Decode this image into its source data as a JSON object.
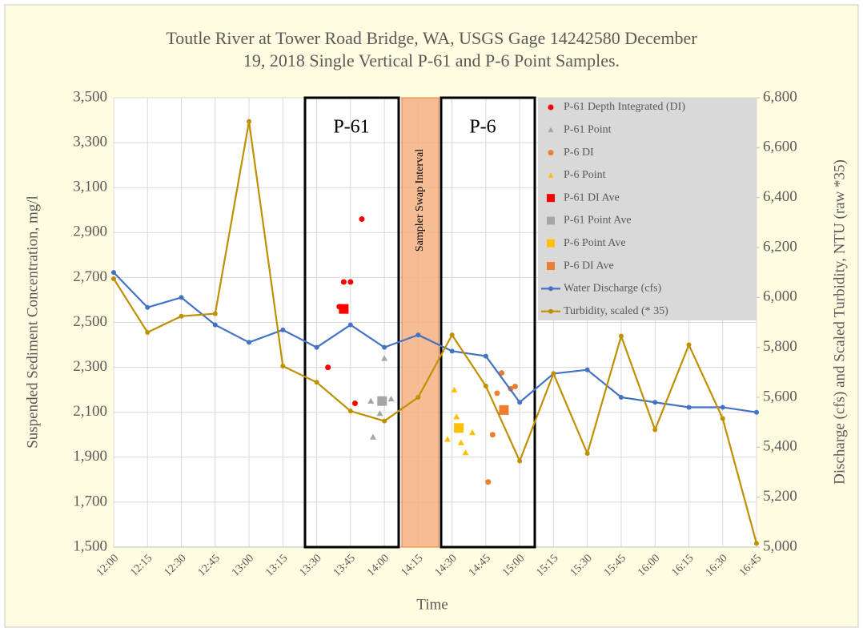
{
  "chart_data": {
    "type": "line",
    "title": [
      "Toutle River at Tower Road Bridge, WA, USGS Gage 14242580 December",
      "19, 2018 Single Vertical P-61 and P-6 Point Samples."
    ],
    "xlabel": "Time",
    "ylabel": "Suspended Sediment Concentration, mg/l",
    "y2label": "Discharge (cfs) and Scaled Turbidity, NTU (raw *35)",
    "annotations": [
      "P-61",
      "P-6",
      "Sampler Swap Interval"
    ],
    "xlim": [
      720,
      1005
    ],
    "xticks": [
      {
        "value": 720,
        "label": "12:00"
      },
      {
        "value": 735,
        "label": "12:15"
      },
      {
        "value": 750,
        "label": "12:30"
      },
      {
        "value": 765,
        "label": "12:45"
      },
      {
        "value": 780,
        "label": "13:00"
      },
      {
        "value": 795,
        "label": "13:15"
      },
      {
        "value": 810,
        "label": "13:30"
      },
      {
        "value": 825,
        "label": "13:45"
      },
      {
        "value": 840,
        "label": "14:00"
      },
      {
        "value": 855,
        "label": "14:15"
      },
      {
        "value": 870,
        "label": "14:30"
      },
      {
        "value": 885,
        "label": "14:45"
      },
      {
        "value": 900,
        "label": "15:00"
      },
      {
        "value": 915,
        "label": "15:15"
      },
      {
        "value": 930,
        "label": "15:30"
      },
      {
        "value": 945,
        "label": "15:45"
      },
      {
        "value": 960,
        "label": "16:00"
      },
      {
        "value": 975,
        "label": "16:15"
      },
      {
        "value": 990,
        "label": "16:30"
      },
      {
        "value": 1005,
        "label": "16:45"
      }
    ],
    "ylim": [
      1500,
      3500
    ],
    "yticks": [
      {
        "value": 1500,
        "label": "1,500"
      },
      {
        "value": 1700,
        "label": "1,700"
      },
      {
        "value": 1900,
        "label": "1,900"
      },
      {
        "value": 2100,
        "label": "2,100"
      },
      {
        "value": 2300,
        "label": "2,300"
      },
      {
        "value": 2500,
        "label": "2,500"
      },
      {
        "value": 2700,
        "label": "2,700"
      },
      {
        "value": 2900,
        "label": "2,900"
      },
      {
        "value": 3100,
        "label": "3,100"
      },
      {
        "value": 3300,
        "label": "3,300"
      },
      {
        "value": 3500,
        "label": "3,500"
      }
    ],
    "y2lim": [
      5000,
      6800
    ],
    "y2ticks": [
      {
        "value": 5000,
        "label": "5,000"
      },
      {
        "value": 5200,
        "label": "5,200"
      },
      {
        "value": 5400,
        "label": "5,400"
      },
      {
        "value": 5600,
        "label": "5,600"
      },
      {
        "value": 5800,
        "label": "5,800"
      },
      {
        "value": 6000,
        "label": "6,000"
      },
      {
        "value": 6200,
        "label": "6,200"
      },
      {
        "value": 6400,
        "label": "6,400"
      },
      {
        "value": 6600,
        "label": "6,600"
      },
      {
        "value": 6800,
        "label": "6,800"
      }
    ],
    "grid": true,
    "legend": "upper right",
    "series": [
      {
        "name": "P-61 Depth Integrated (DI)",
        "kind": "scatter",
        "marker": "circle",
        "color": "#ff0000",
        "x": [
          815,
          820,
          822,
          825,
          827,
          830
        ],
        "values": [
          2300,
          2570,
          2680,
          2680,
          2140,
          2960
        ]
      },
      {
        "name": "P-61 Point",
        "kind": "scatter",
        "marker": "triangle",
        "color": "#a6a6a6",
        "x": [
          834,
          835,
          838,
          840,
          843
        ],
        "values": [
          2150,
          1990,
          2095,
          2340,
          2160
        ]
      },
      {
        "name": "P-6 DI",
        "kind": "scatter",
        "marker": "circle",
        "color": "#ed7d31",
        "x": [
          886,
          888,
          890,
          892,
          896,
          898
        ],
        "values": [
          1790,
          2000,
          2185,
          2275,
          2205,
          2215
        ]
      },
      {
        "name": "P-6 Point",
        "kind": "scatter",
        "marker": "triangle",
        "color": "#ffc000",
        "x": [
          868,
          871,
          872,
          874,
          876,
          879
        ],
        "values": [
          1980,
          2200,
          2080,
          1965,
          1920,
          2010
        ]
      },
      {
        "name": "P-61 DI Ave",
        "kind": "scatter",
        "marker": "square",
        "color": "#ff0000",
        "x": [
          822
        ],
        "values": [
          2560
        ]
      },
      {
        "name": "P-61 Point Ave",
        "kind": "scatter",
        "marker": "square",
        "color": "#a6a6a6",
        "x": [
          839
        ],
        "values": [
          2150
        ]
      },
      {
        "name": "P-6 Point Ave",
        "kind": "scatter",
        "marker": "square",
        "color": "#ffc000",
        "x": [
          873
        ],
        "values": [
          2030
        ]
      },
      {
        "name": "P-6 DI Ave",
        "kind": "scatter",
        "marker": "square",
        "color": "#ed7d31",
        "x": [
          893
        ],
        "values": [
          2110
        ]
      },
      {
        "name": "Water Discharge (cfs)",
        "kind": "line",
        "marker": "circle",
        "color": "#4472c4",
        "axis": "y2",
        "x": [
          720,
          735,
          750,
          765,
          780,
          795,
          810,
          825,
          840,
          855,
          870,
          885,
          900,
          915,
          930,
          945,
          960,
          975,
          990,
          1005
        ],
        "values": [
          6100,
          5960,
          6000,
          5890,
          5820,
          5870,
          5800,
          5890,
          5800,
          5850,
          5785,
          5765,
          5580,
          5695,
          5710,
          5600,
          5580,
          5560,
          5560,
          5540
        ]
      },
      {
        "name": "Turbidity, scaled (* 35)",
        "kind": "line",
        "marker": "circle",
        "color": "#bf9000",
        "axis": "y2",
        "x": [
          720,
          735,
          750,
          765,
          780,
          795,
          810,
          825,
          840,
          855,
          870,
          885,
          900,
          915,
          930,
          945,
          960,
          975,
          990,
          1005
        ],
        "values": [
          6075,
          5860,
          5925,
          5935,
          6705,
          5725,
          5660,
          5545,
          5505,
          5600,
          5850,
          5645,
          5345,
          5695,
          5375,
          5845,
          5470,
          5810,
          5515,
          5015
        ]
      }
    ]
  }
}
